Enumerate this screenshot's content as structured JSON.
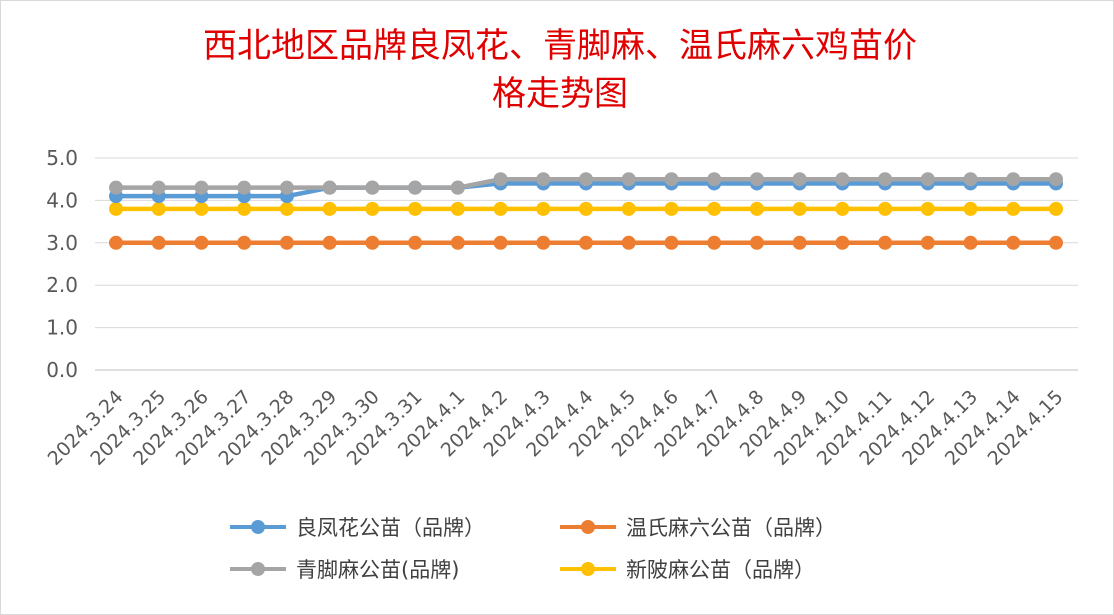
{
  "chart_data": {
    "type": "line",
    "title_lines": [
      "西北地区品牌良凤花、青脚麻、温氏麻六鸡苗价",
      "格走势图"
    ],
    "xlabel": "",
    "ylabel": "",
    "ylim": [
      0,
      5
    ],
    "yticks": [
      "0.0",
      "1.0",
      "2.0",
      "3.0",
      "4.0",
      "5.0"
    ],
    "grid": true,
    "legend_position": "bottom",
    "categories": [
      "2024.3.24",
      "2024.3.25",
      "2024.3.26",
      "2024.3.27",
      "2024.3.28",
      "2024.3.29",
      "2024.3.30",
      "2024.3.31",
      "2024.4.1",
      "2024.4.2",
      "2024.4.3",
      "2024.4.4",
      "2024.4.5",
      "2024.4.6",
      "2024.4.7",
      "2024.4.8",
      "2024.4.9",
      "2024.4.10",
      "2024.4.11",
      "2024.4.12",
      "2024.4.13",
      "2024.4.14",
      "2024.4.15"
    ],
    "series": [
      {
        "name": "良凤花公苗（品牌）",
        "color": "#5b9bd5",
        "values": [
          4.1,
          4.1,
          4.1,
          4.1,
          4.1,
          4.3,
          4.3,
          4.3,
          4.3,
          4.4,
          4.4,
          4.4,
          4.4,
          4.4,
          4.4,
          4.4,
          4.4,
          4.4,
          4.4,
          4.4,
          4.4,
          4.4,
          4.4
        ]
      },
      {
        "name": "温氏麻六公苗（品牌）",
        "color": "#ed7d31",
        "values": [
          3.0,
          3.0,
          3.0,
          3.0,
          3.0,
          3.0,
          3.0,
          3.0,
          3.0,
          3.0,
          3.0,
          3.0,
          3.0,
          3.0,
          3.0,
          3.0,
          3.0,
          3.0,
          3.0,
          3.0,
          3.0,
          3.0,
          3.0
        ]
      },
      {
        "name": "青脚麻公苗(品牌)",
        "color": "#a5a5a5",
        "values": [
          4.3,
          4.3,
          4.3,
          4.3,
          4.3,
          4.3,
          4.3,
          4.3,
          4.3,
          4.5,
          4.5,
          4.5,
          4.5,
          4.5,
          4.5,
          4.5,
          4.5,
          4.5,
          4.5,
          4.5,
          4.5,
          4.5,
          4.5
        ]
      },
      {
        "name": "新陂麻公苗（品牌）",
        "color": "#ffc000",
        "values": [
          3.8,
          3.8,
          3.8,
          3.8,
          3.8,
          3.8,
          3.8,
          3.8,
          3.8,
          3.8,
          3.8,
          3.8,
          3.8,
          3.8,
          3.8,
          3.8,
          3.8,
          3.8,
          3.8,
          3.8,
          3.8,
          3.8,
          3.8
        ]
      }
    ]
  }
}
